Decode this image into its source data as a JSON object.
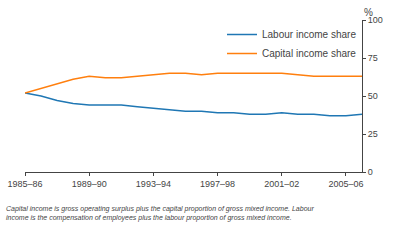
{
  "chart_data": {
    "type": "line",
    "x": [
      1985,
      1986,
      1987,
      1988,
      1989,
      1990,
      1991,
      1992,
      1993,
      1994,
      1995,
      1996,
      1997,
      1998,
      1999,
      2000,
      2001,
      2002,
      2003,
      2004,
      2005,
      2006
    ],
    "series": [
      {
        "name": "Labour income share",
        "values": [
          52,
          50,
          47,
          45,
          44,
          44,
          44,
          43,
          42,
          41,
          40,
          40,
          39,
          39,
          38,
          38,
          39,
          38,
          38,
          37,
          37,
          38
        ]
      },
      {
        "name": "Capital income share",
        "values": [
          52,
          55,
          58,
          61,
          63,
          62,
          62,
          63,
          64,
          65,
          65,
          64,
          65,
          65,
          65,
          65,
          65,
          64,
          63,
          63,
          63,
          63
        ]
      }
    ],
    "xlim": [
      1985,
      2006
    ],
    "xticks": [
      {
        "value": 1985,
        "label": "1985–86"
      },
      {
        "value": 1989,
        "label": "1989–90"
      },
      {
        "value": 1993,
        "label": "1993–94"
      },
      {
        "value": 1997,
        "label": "1997–98"
      },
      {
        "value": 2001,
        "label": "2001–02"
      },
      {
        "value": 2005,
        "label": "2005–06"
      }
    ],
    "ylim": [
      0,
      100
    ],
    "yticks": [
      0,
      25,
      50,
      75,
      100
    ],
    "ylabel": "%",
    "annotations": [
      "Capital income is gross operating surplus plus the capital proportion of gross mixed income. Labour",
      "income is the compensation of employees plus the labour proportion of gross mixed income."
    ],
    "legend": "upper right",
    "grid": false
  }
}
